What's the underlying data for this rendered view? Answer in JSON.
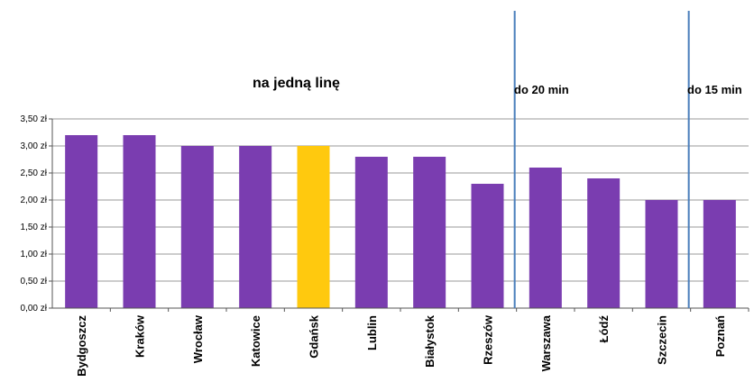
{
  "chart_data": {
    "type": "bar",
    "categories": [
      "Bydgoszcz",
      "Kraków",
      "Wrocław",
      "Katowice",
      "Gdańsk",
      "Lublin",
      "Białystok",
      "Rzeszów",
      "Warszawa",
      "Łódź",
      "Szczecin",
      "Poznań"
    ],
    "values": [
      3.2,
      3.2,
      3.0,
      3.0,
      3.0,
      2.8,
      2.8,
      2.3,
      2.6,
      2.4,
      2.0,
      2.0
    ],
    "highlight_index": 4,
    "ylim": [
      0,
      3.5
    ],
    "yticks": [
      "0,00 zł",
      "0,50 zł",
      "1,00 zł",
      "1,50 zł",
      "2,00 zł",
      "2,50 zł",
      "3,00 zł",
      "3,50 zł"
    ],
    "grid": true,
    "legend": "none",
    "annotations": [
      "na  jedną linę",
      "do 20 min",
      "do 15 min"
    ],
    "colors": {
      "bar": "#7A3DB0",
      "highlight": "#FFC90E",
      "grid": "#9a9a9a",
      "divider": "#4A7EBB"
    }
  }
}
